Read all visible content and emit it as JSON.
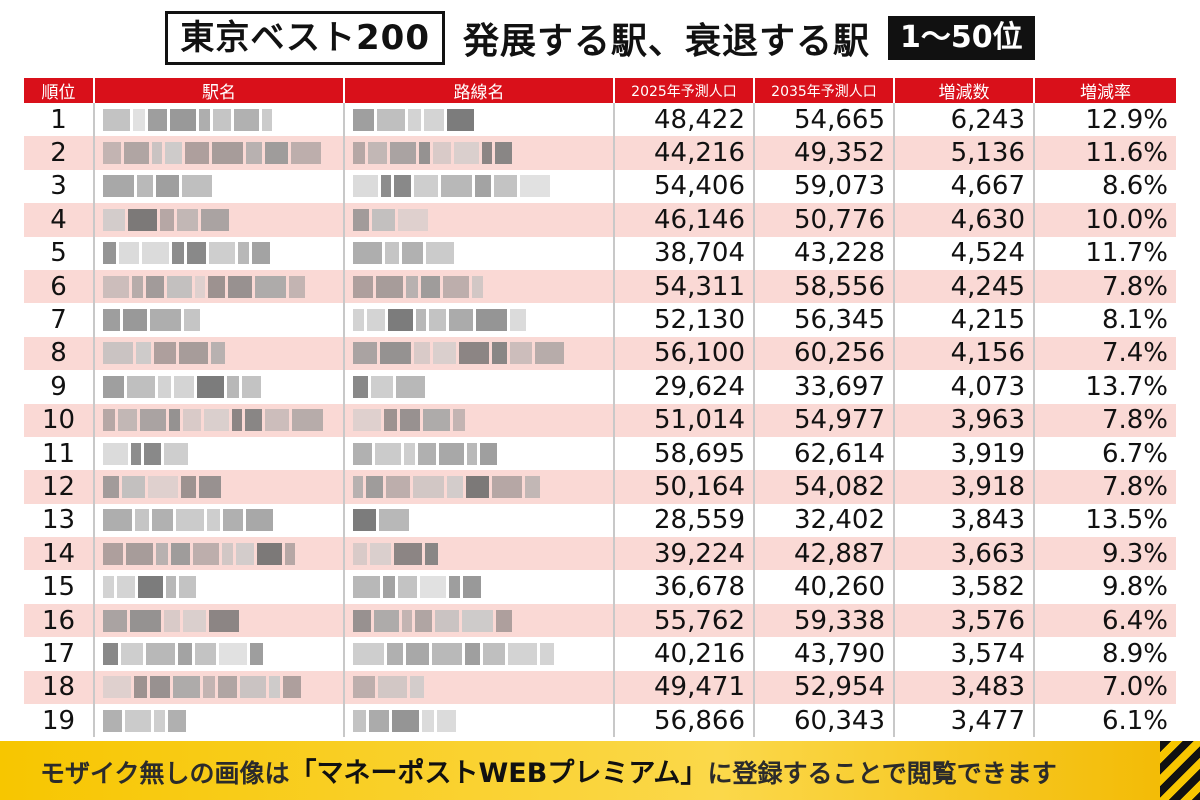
{
  "title": {
    "boxed": "東京ベスト200",
    "main": "発展する駅、衰退する駅",
    "rank_range": "1〜50位"
  },
  "columns": [
    "順位",
    "駅名",
    "路線名",
    "2025年予測人口",
    "2035年予測人口",
    "増減数",
    "増減率"
  ],
  "rows": [
    {
      "rank": "1",
      "pop2025": "48,422",
      "pop2035": "54,665",
      "change": "6,243",
      "rate": "12.9%"
    },
    {
      "rank": "2",
      "pop2025": "44,216",
      "pop2035": "49,352",
      "change": "5,136",
      "rate": "11.6%"
    },
    {
      "rank": "3",
      "pop2025": "54,406",
      "pop2035": "59,073",
      "change": "4,667",
      "rate": "8.6%"
    },
    {
      "rank": "4",
      "pop2025": "46,146",
      "pop2035": "50,776",
      "change": "4,630",
      "rate": "10.0%"
    },
    {
      "rank": "5",
      "pop2025": "38,704",
      "pop2035": "43,228",
      "change": "4,524",
      "rate": "11.7%"
    },
    {
      "rank": "6",
      "pop2025": "54,311",
      "pop2035": "58,556",
      "change": "4,245",
      "rate": "7.8%"
    },
    {
      "rank": "7",
      "pop2025": "52,130",
      "pop2035": "56,345",
      "change": "4,215",
      "rate": "8.1%"
    },
    {
      "rank": "8",
      "pop2025": "56,100",
      "pop2035": "60,256",
      "change": "4,156",
      "rate": "7.4%"
    },
    {
      "rank": "9",
      "pop2025": "29,624",
      "pop2035": "33,697",
      "change": "4,073",
      "rate": "13.7%"
    },
    {
      "rank": "10",
      "pop2025": "51,014",
      "pop2035": "54,977",
      "change": "3,963",
      "rate": "7.8%"
    },
    {
      "rank": "11",
      "pop2025": "58,695",
      "pop2035": "62,614",
      "change": "3,919",
      "rate": "6.7%"
    },
    {
      "rank": "12",
      "pop2025": "50,164",
      "pop2035": "54,082",
      "change": "3,918",
      "rate": "7.8%"
    },
    {
      "rank": "13",
      "pop2025": "28,559",
      "pop2035": "32,402",
      "change": "3,843",
      "rate": "13.5%"
    },
    {
      "rank": "14",
      "pop2025": "39,224",
      "pop2035": "42,887",
      "change": "3,663",
      "rate": "9.3%"
    },
    {
      "rank": "15",
      "pop2025": "36,678",
      "pop2035": "40,260",
      "change": "3,582",
      "rate": "9.8%"
    },
    {
      "rank": "16",
      "pop2025": "55,762",
      "pop2035": "59,338",
      "change": "3,576",
      "rate": "6.4%"
    },
    {
      "rank": "17",
      "pop2025": "40,216",
      "pop2035": "43,790",
      "change": "3,574",
      "rate": "8.9%"
    },
    {
      "rank": "18",
      "pop2025": "49,471",
      "pop2035": "52,954",
      "change": "3,483",
      "rate": "7.0%"
    },
    {
      "rank": "19",
      "pop2025": "56,866",
      "pop2035": "60,343",
      "change": "3,477",
      "rate": "6.1%"
    }
  ],
  "footer": {
    "before": "モザイク無しの画像は",
    "brand": "「マネーポストWEBプレミアム」",
    "after": "に登録することで閲覧できます"
  },
  "colors": {
    "header_red": "#d9101a",
    "row_stripe": "#fad9d5",
    "banner_yellow": "#f7c600"
  }
}
